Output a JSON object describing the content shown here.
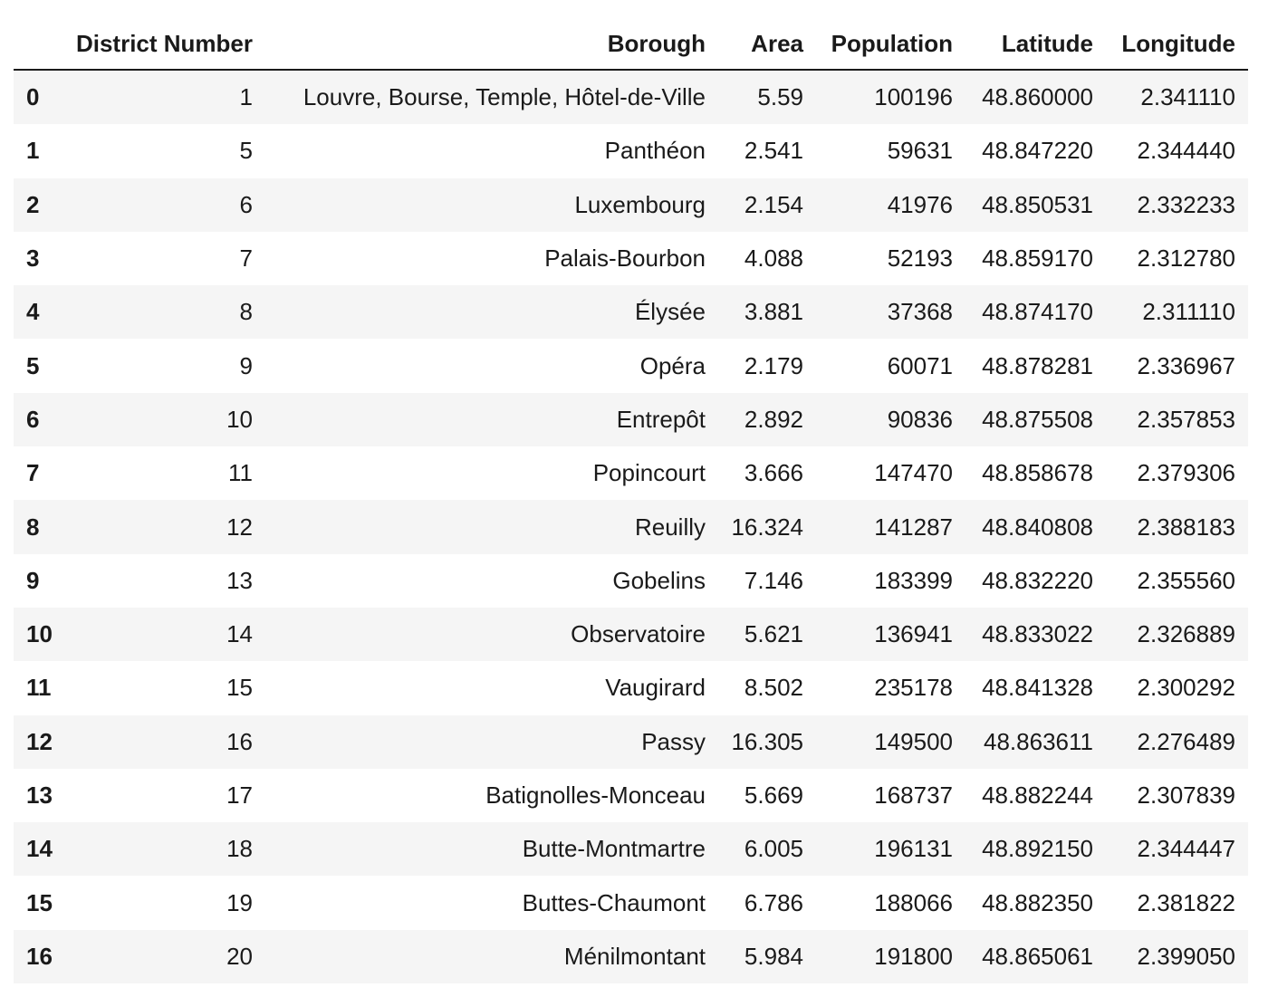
{
  "columns": {
    "index": "",
    "district_number": "District Number",
    "borough": "Borough",
    "area": "Area",
    "population": "Population",
    "latitude": "Latitude",
    "longitude": "Longitude"
  },
  "rows": [
    {
      "index": "0",
      "district_number": "1",
      "borough": "Louvre, Bourse, Temple, Hôtel-de-Ville",
      "area": "5.59",
      "population": "100196",
      "latitude": "48.860000",
      "longitude": "2.341110"
    },
    {
      "index": "1",
      "district_number": "5",
      "borough": "Panthéon",
      "area": "2.541",
      "population": "59631",
      "latitude": "48.847220",
      "longitude": "2.344440"
    },
    {
      "index": "2",
      "district_number": "6",
      "borough": "Luxembourg",
      "area": "2.154",
      "population": "41976",
      "latitude": "48.850531",
      "longitude": "2.332233"
    },
    {
      "index": "3",
      "district_number": "7",
      "borough": "Palais-Bourbon",
      "area": "4.088",
      "population": "52193",
      "latitude": "48.859170",
      "longitude": "2.312780"
    },
    {
      "index": "4",
      "district_number": "8",
      "borough": "Élysée",
      "area": "3.881",
      "population": "37368",
      "latitude": "48.874170",
      "longitude": "2.311110"
    },
    {
      "index": "5",
      "district_number": "9",
      "borough": "Opéra",
      "area": "2.179",
      "population": "60071",
      "latitude": "48.878281",
      "longitude": "2.336967"
    },
    {
      "index": "6",
      "district_number": "10",
      "borough": "Entrepôt",
      "area": "2.892",
      "population": "90836",
      "latitude": "48.875508",
      "longitude": "2.357853"
    },
    {
      "index": "7",
      "district_number": "11",
      "borough": "Popincourt",
      "area": "3.666",
      "population": "147470",
      "latitude": "48.858678",
      "longitude": "2.379306"
    },
    {
      "index": "8",
      "district_number": "12",
      "borough": "Reuilly",
      "area": "16.324",
      "population": "141287",
      "latitude": "48.840808",
      "longitude": "2.388183"
    },
    {
      "index": "9",
      "district_number": "13",
      "borough": "Gobelins",
      "area": "7.146",
      "population": "183399",
      "latitude": "48.832220",
      "longitude": "2.355560"
    },
    {
      "index": "10",
      "district_number": "14",
      "borough": "Observatoire",
      "area": "5.621",
      "population": "136941",
      "latitude": "48.833022",
      "longitude": "2.326889"
    },
    {
      "index": "11",
      "district_number": "15",
      "borough": "Vaugirard",
      "area": "8.502",
      "population": "235178",
      "latitude": "48.841328",
      "longitude": "2.300292"
    },
    {
      "index": "12",
      "district_number": "16",
      "borough": "Passy",
      "area": "16.305",
      "population": "149500",
      "latitude": "48.863611",
      "longitude": "2.276489"
    },
    {
      "index": "13",
      "district_number": "17",
      "borough": "Batignolles-Monceau",
      "area": "5.669",
      "population": "168737",
      "latitude": "48.882244",
      "longitude": "2.307839"
    },
    {
      "index": "14",
      "district_number": "18",
      "borough": "Butte-Montmartre",
      "area": "6.005",
      "population": "196131",
      "latitude": "48.892150",
      "longitude": "2.344447"
    },
    {
      "index": "15",
      "district_number": "19",
      "borough": "Buttes-Chaumont",
      "area": "6.786",
      "population": "188066",
      "latitude": "48.882350",
      "longitude": "2.381822"
    },
    {
      "index": "16",
      "district_number": "20",
      "borough": "Ménilmontant",
      "area": "5.984",
      "population": "191800",
      "latitude": "48.865061",
      "longitude": "2.399050"
    }
  ]
}
